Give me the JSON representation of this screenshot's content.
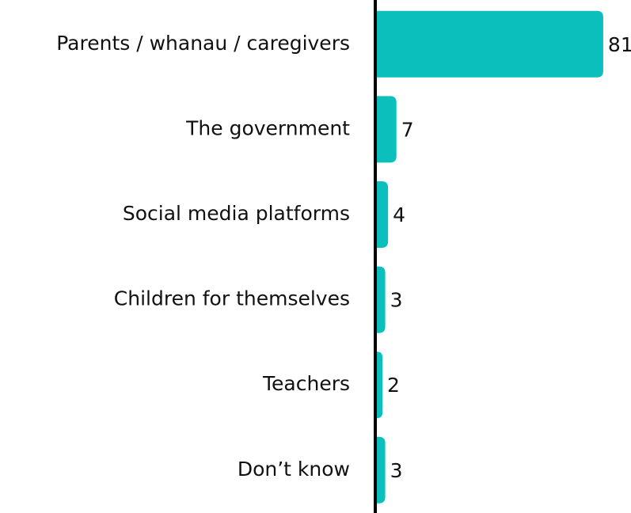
{
  "chart_data": {
    "type": "bar",
    "orientation": "horizontal",
    "categories": [
      "Parents / whanau / caregivers",
      "The government",
      "Social media platforms",
      "Children for themselves",
      "Teachers",
      "Don’t know"
    ],
    "values": [
      81,
      7,
      4,
      3,
      2,
      3
    ],
    "color": "#0bbfbd"
  }
}
